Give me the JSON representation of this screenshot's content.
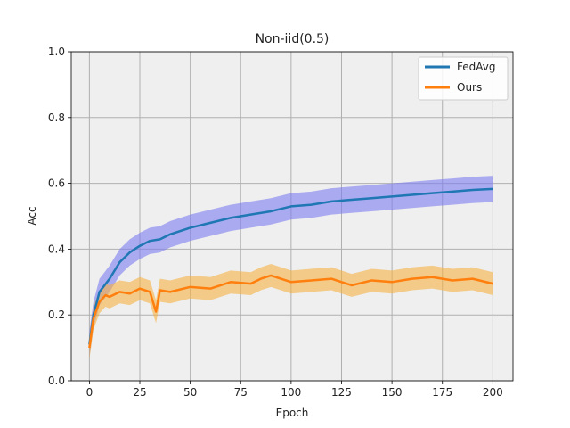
{
  "chart_data": {
    "type": "line",
    "title": "Non-iid(0.5)",
    "xlabel": "Epoch",
    "ylabel": "Acc",
    "xlim": [
      -9,
      210
    ],
    "ylim": [
      0.0,
      1.0
    ],
    "xticks": [
      0,
      25,
      50,
      75,
      100,
      125,
      150,
      175,
      200
    ],
    "yticks": [
      0.0,
      0.2,
      0.4,
      0.6,
      0.8,
      1.0
    ],
    "xtick_labels": [
      "0",
      "25",
      "50",
      "75",
      "100",
      "125",
      "150",
      "175",
      "200"
    ],
    "ytick_labels": [
      "0.0",
      "0.2",
      "0.4",
      "0.6",
      "0.8",
      "1.0"
    ],
    "grid": true,
    "legend_position": "top-right",
    "series": [
      {
        "name": "FedAvg",
        "color": "#1f77b4",
        "band_color": "#7b7bf0",
        "band_halfwidth": 0.04,
        "x": [
          0,
          2,
          5,
          10,
          15,
          20,
          25,
          30,
          35,
          40,
          50,
          60,
          70,
          80,
          90,
          100,
          110,
          120,
          130,
          140,
          150,
          160,
          170,
          180,
          190,
          200
        ],
        "y": [
          0.11,
          0.2,
          0.27,
          0.31,
          0.36,
          0.39,
          0.41,
          0.425,
          0.43,
          0.445,
          0.465,
          0.48,
          0.495,
          0.505,
          0.515,
          0.53,
          0.535,
          0.545,
          0.55,
          0.555,
          0.56,
          0.565,
          0.57,
          0.575,
          0.58,
          0.583
        ]
      },
      {
        "name": "Ours",
        "color": "#ff7f0e",
        "band_color": "#f5b041",
        "band_halfwidth": 0.035,
        "x": [
          0,
          2,
          5,
          8,
          10,
          15,
          20,
          25,
          30,
          33,
          35,
          40,
          50,
          60,
          70,
          80,
          85,
          90,
          100,
          110,
          120,
          125,
          130,
          140,
          150,
          160,
          170,
          180,
          190,
          200
        ],
        "y": [
          0.1,
          0.19,
          0.24,
          0.26,
          0.255,
          0.27,
          0.265,
          0.28,
          0.27,
          0.21,
          0.275,
          0.27,
          0.285,
          0.28,
          0.3,
          0.295,
          0.31,
          0.32,
          0.3,
          0.305,
          0.31,
          0.3,
          0.29,
          0.305,
          0.3,
          0.31,
          0.315,
          0.305,
          0.31,
          0.295
        ]
      }
    ]
  }
}
